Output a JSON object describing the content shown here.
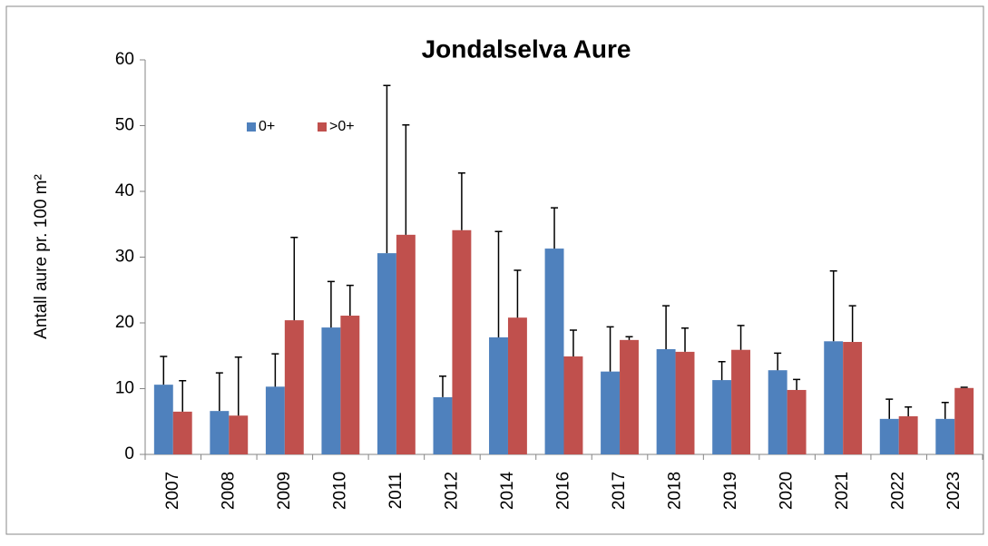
{
  "chart_data": {
    "type": "bar",
    "title": "Jondalselva Aure",
    "y_label": "Antall aure pr. 100 m²",
    "categories": [
      "2007",
      "2008",
      "2009",
      "2010",
      "2011",
      "2012",
      "2014",
      "2016",
      "2017",
      "2018",
      "2019",
      "2020",
      "2021",
      "2022",
      "2023"
    ],
    "series": [
      {
        "name": "0+",
        "color": "#4f81bd",
        "values": [
          10.6,
          6.6,
          10.3,
          19.3,
          30.6,
          8.7,
          17.8,
          31.3,
          12.6,
          16.0,
          11.3,
          12.8,
          17.2,
          5.4,
          5.4
        ],
        "errors": [
          4.3,
          5.8,
          5.0,
          7.0,
          25.5,
          3.2,
          16.1,
          6.2,
          6.8,
          6.6,
          2.8,
          2.6,
          10.7,
          3.0,
          2.5
        ]
      },
      {
        "name": ">0+",
        "color": "#c0504d",
        "values": [
          6.5,
          5.9,
          20.4,
          21.1,
          33.4,
          34.1,
          20.8,
          14.9,
          17.4,
          15.6,
          15.9,
          9.8,
          17.1,
          5.8,
          10.1
        ],
        "errors": [
          4.7,
          8.9,
          12.6,
          4.6,
          16.7,
          8.7,
          7.2,
          4.0,
          0.5,
          3.6,
          3.7,
          1.6,
          5.5,
          1.4,
          0.1
        ]
      }
    ],
    "ylim": [
      0,
      60
    ],
    "yticks": [
      0,
      10,
      20,
      30,
      40,
      50,
      60
    ],
    "grid": false,
    "legend": "top-left"
  }
}
